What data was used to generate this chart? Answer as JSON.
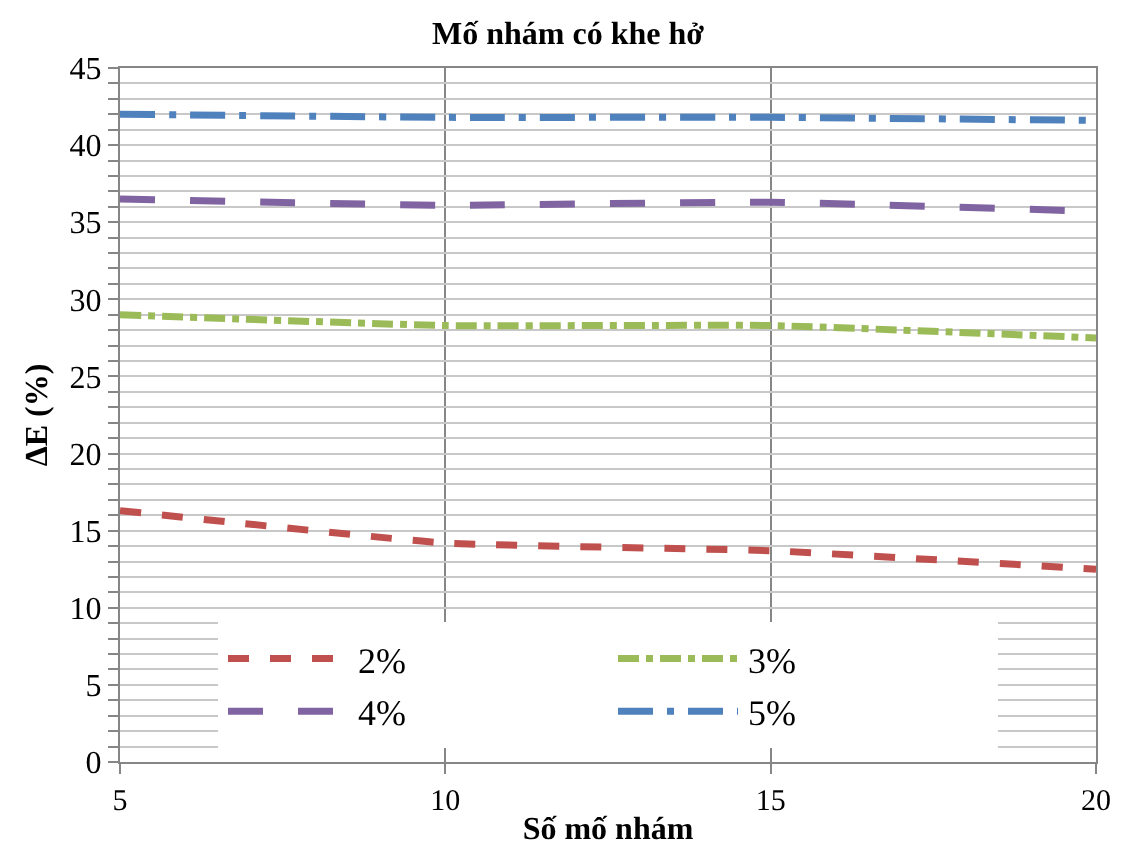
{
  "chart_data": {
    "type": "line",
    "title": "Mố nhám có khe hở",
    "xlabel": "Số mố nhám",
    "ylabel": "ΔE (%)",
    "x": [
      5,
      10,
      15,
      20
    ],
    "series": [
      {
        "name": "2%",
        "color": "#c0504d",
        "line_style": "dashed",
        "values": [
          16.3,
          14.2,
          13.7,
          12.5
        ]
      },
      {
        "name": "3%",
        "color": "#9bbb59",
        "line_style": "dashdot",
        "values": [
          29.0,
          28.3,
          28.3,
          27.5
        ]
      },
      {
        "name": "4%",
        "color": "#8064a2",
        "line_style": "longdash",
        "values": [
          36.5,
          36.1,
          36.3,
          35.7
        ]
      },
      {
        "name": "5%",
        "color": "#4f81bd",
        "line_style": "longdashdot",
        "values": [
          42.0,
          41.8,
          41.8,
          41.6
        ]
      }
    ],
    "xlim": [
      5,
      20
    ],
    "xticks": [
      5,
      10,
      15,
      20
    ],
    "ylim": [
      0,
      45
    ],
    "yticks": [
      0,
      {
        "value": 1,
        "label": null
      },
      {
        "value": 2,
        "label": null
      },
      {
        "value": 3,
        "label": null
      },
      {
        "value": 4,
        "label": null
      },
      5,
      {
        "value": 6,
        "label": null
      },
      {
        "value": 7,
        "label": null
      },
      {
        "value": 8,
        "label": null
      },
      {
        "value": 9,
        "label": null
      },
      10,
      {
        "value": 11,
        "label": null
      },
      {
        "value": 12,
        "label": null
      },
      {
        "value": 13,
        "label": null
      },
      {
        "value": 14,
        "label": null
      },
      15,
      {
        "value": 16,
        "label": null
      },
      {
        "value": 17,
        "label": null
      },
      {
        "value": 18,
        "label": null
      },
      {
        "value": 19,
        "label": null
      },
      20,
      {
        "value": 21,
        "label": null
      },
      {
        "value": 22,
        "label": null
      },
      {
        "value": 23,
        "label": null
      },
      {
        "value": 24,
        "label": null
      },
      25,
      {
        "value": 26,
        "label": null
      },
      {
        "value": 27,
        "label": null
      },
      {
        "value": 28,
        "label": null
      },
      {
        "value": 29,
        "label": null
      },
      30,
      {
        "value": 31,
        "label": null
      },
      {
        "value": 32,
        "label": null
      },
      {
        "value": 33,
        "label": null
      },
      {
        "value": 34,
        "label": null
      },
      35,
      {
        "value": 36,
        "label": null
      },
      {
        "value": 37,
        "label": null
      },
      {
        "value": 38,
        "label": null
      },
      {
        "value": 39,
        "label": null
      },
      40,
      {
        "value": 41,
        "label": null
      },
      {
        "value": 42,
        "label": null
      },
      {
        "value": 43,
        "label": null
      },
      {
        "value": 44,
        "label": null
      },
      45
    ],
    "grid": true,
    "legend": "bottom",
    "marker": "none"
  }
}
